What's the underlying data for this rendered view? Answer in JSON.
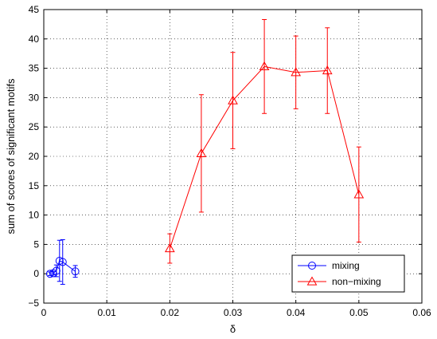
{
  "chart_data": {
    "type": "line",
    "xlabel": "δ",
    "ylabel": "sum of scores of significant motifs",
    "xlim": [
      0,
      0.06
    ],
    "ylim": [
      -5,
      45
    ],
    "x_ticks": [
      0,
      0.01,
      0.02,
      0.03,
      0.04,
      0.05,
      0.06
    ],
    "x_tick_labels": [
      "0",
      "0.01",
      "0.02",
      "0.03",
      "0.04",
      "0.05",
      "0.06"
    ],
    "y_ticks": [
      -5,
      0,
      5,
      10,
      15,
      20,
      25,
      30,
      35,
      40,
      45
    ],
    "y_tick_labels": [
      "−5",
      "0",
      "5",
      "10",
      "15",
      "20",
      "25",
      "30",
      "35",
      "40",
      "45"
    ],
    "grid": "dotted",
    "legend_position": "bottom-right",
    "series": [
      {
        "name": "mixing",
        "color": "#0000ff",
        "marker": "circle",
        "x": [
          0.001,
          0.0015,
          0.002,
          0.0025,
          0.003,
          0.005
        ],
        "y": [
          0.0,
          0.1,
          0.5,
          2.2,
          2.0,
          0.4
        ],
        "err": [
          0.3,
          0.3,
          1.0,
          3.5,
          3.8,
          1.0
        ]
      },
      {
        "name": "non−mixing",
        "color": "#ff0000",
        "marker": "triangle",
        "x": [
          0.02,
          0.025,
          0.03,
          0.035,
          0.04,
          0.045,
          0.05
        ],
        "y": [
          4.3,
          20.5,
          29.5,
          35.3,
          34.3,
          34.6,
          13.5
        ],
        "err": [
          2.5,
          10.0,
          8.2,
          8.0,
          6.2,
          7.3,
          8.1
        ]
      }
    ]
  }
}
